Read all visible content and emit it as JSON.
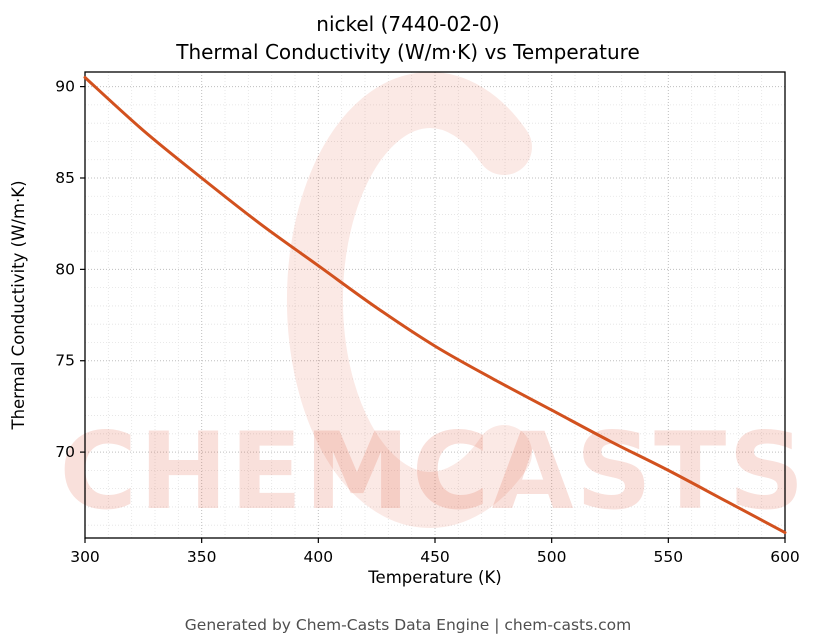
{
  "chart_data": {
    "type": "line",
    "title_line1": "nickel (7440-02-0)",
    "title_line2": "Thermal Conductivity (W/m·K) vs Temperature",
    "xlabel": "Temperature (K)",
    "ylabel": "Thermal Conductivity (W/m·K)",
    "xlim": [
      300,
      600
    ],
    "ylim": [
      65.3,
      90.8
    ],
    "xticks": [
      300,
      350,
      400,
      450,
      500,
      550,
      600
    ],
    "yticks": [
      70,
      75,
      80,
      85,
      90
    ],
    "x_minor_step": 10,
    "y_minor_step": 1,
    "grid": true,
    "legend": false,
    "series": [
      {
        "name": "thermal-conductivity",
        "color": "#d2511e",
        "x": [
          300,
          325,
          350,
          375,
          400,
          425,
          450,
          475,
          500,
          525,
          550,
          575,
          600
        ],
        "y": [
          90.5,
          87.6,
          85.0,
          82.5,
          80.2,
          77.9,
          75.8,
          74.0,
          72.3,
          70.6,
          69.0,
          67.3,
          65.6
        ]
      }
    ],
    "watermark": {
      "text": "CHEMCASTS",
      "color": "#e05535",
      "text_opacity": 0.18,
      "logo_opacity": 0.13
    }
  },
  "footer": {
    "text": "Generated by Chem-Casts Data Engine | chem-casts.com"
  }
}
